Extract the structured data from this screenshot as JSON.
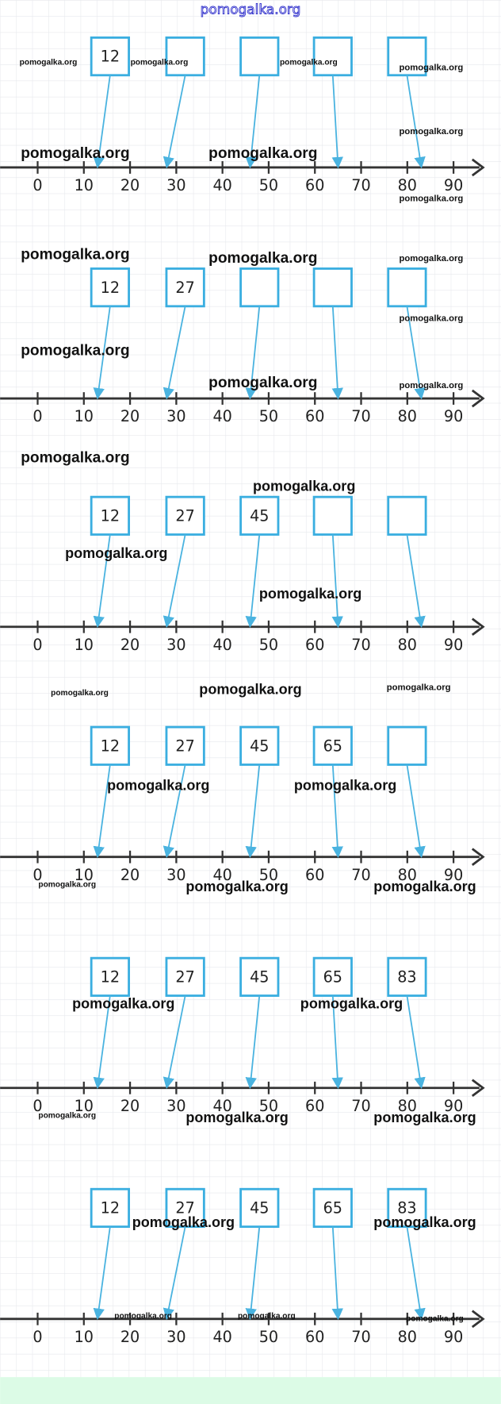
{
  "header": {
    "watermark": "pomogalka.org"
  },
  "number_line": {
    "ticks": [
      0,
      10,
      20,
      30,
      40,
      50,
      60,
      70,
      80,
      90
    ],
    "arrow_targets": [
      13,
      28,
      46,
      65,
      83
    ]
  },
  "panels": [
    {
      "boxes": [
        12,
        null,
        null,
        null,
        null
      ]
    },
    {
      "boxes": [
        12,
        27,
        null,
        null,
        null
      ]
    },
    {
      "boxes": [
        12,
        27,
        45,
        null,
        null
      ]
    },
    {
      "boxes": [
        12,
        27,
        45,
        65,
        null
      ]
    },
    {
      "boxes": [
        12,
        27,
        45,
        65,
        83
      ]
    },
    {
      "boxes": [
        12,
        27,
        45,
        65,
        83
      ]
    }
  ],
  "watermarks": [
    "pomogalka.org",
    "pomogalka.org",
    "pomogalka.org",
    "pomogalka.org",
    "pomogalka.org",
    "pomogalka.org",
    "pomogalka.org",
    "pomogalka.org",
    "pomogalka.org",
    "pomogalka.org",
    "pomogalka.org",
    "pomogalka.org",
    "pomogalka.org",
    "pomogalka.org",
    "pomogalka.org",
    "pomogalka.org",
    "pomogalka.org",
    "pomogalka.org",
    "pomogalka.org",
    "pomogalka.org",
    "pomogalka.org",
    "pomogalka.org",
    "pomogalka.org",
    "pomogalka.org",
    "pomogalka.org",
    "pomogalka.org",
    "pomogalka.org",
    "pomogalka.org",
    "pomogalka.org",
    "pomogalka.org",
    "pomogalka.org",
    "pomogalka.org",
    "pomogalka.org",
    "pomogalka.org",
    "pomogalka.org",
    "pomogalka.org",
    "pomogalka.org"
  ]
}
